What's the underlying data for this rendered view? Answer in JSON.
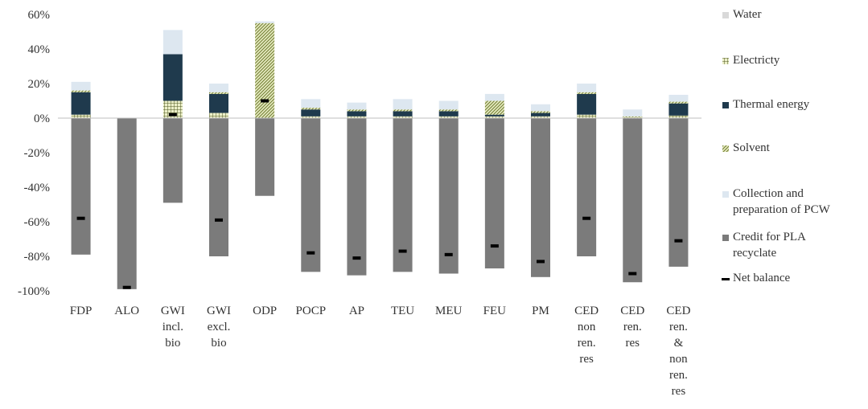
{
  "chart_data": {
    "type": "bar",
    "stacked": true,
    "title": "",
    "xlabel": "",
    "ylabel": "",
    "ylim": [
      -100,
      60
    ],
    "ytick_step": 20,
    "ytick_format": "percent",
    "grid": false,
    "legend_position": "right",
    "categories": [
      [
        "FDP"
      ],
      [
        "ALO"
      ],
      [
        "GWI",
        "incl.",
        "bio"
      ],
      [
        "GWI",
        "excl.",
        "bio"
      ],
      [
        "ODP"
      ],
      [
        "POCP"
      ],
      [
        "AP"
      ],
      [
        "TEU"
      ],
      [
        "MEU"
      ],
      [
        "FEU"
      ],
      [
        "PM"
      ],
      [
        "CED",
        "non",
        "ren.",
        "res"
      ],
      [
        "CED",
        "ren.",
        "res"
      ],
      [
        "CED",
        "ren.",
        "&",
        "non",
        "ren.",
        "res"
      ]
    ],
    "series": [
      {
        "name": "Water",
        "legend_lines": [
          "Water"
        ],
        "color": "#d9d9d9",
        "pattern": "solid",
        "values": [
          0,
          0,
          0,
          0,
          0,
          0,
          0,
          0,
          0,
          0,
          0,
          0,
          0,
          0
        ]
      },
      {
        "name": "Electricty",
        "legend_lines": [
          "Electricty"
        ],
        "color": "#6f7a3a",
        "pattern": "grid",
        "values": [
          2,
          0,
          10,
          3,
          0,
          1,
          1,
          1,
          1,
          1,
          1,
          2,
          0.5,
          1.5
        ]
      },
      {
        "name": "Thermal energy",
        "legend_lines": [
          "Thermal energy"
        ],
        "color": "#1f3a4d",
        "pattern": "solid",
        "values": [
          13,
          0,
          27,
          11,
          0,
          4,
          3,
          3,
          3,
          1,
          2,
          12,
          0,
          7
        ]
      },
      {
        "name": "Solvent",
        "legend_lines": [
          "Solvent"
        ],
        "color": "#8a9a3e",
        "pattern": "dots",
        "values": [
          1,
          0,
          0,
          1,
          55,
          1,
          1,
          1,
          1,
          8,
          1,
          1,
          0.5,
          1
        ]
      },
      {
        "name": "Collection and preparation of PCW",
        "legend_lines": [
          "Collection and",
          "preparation of PCW"
        ],
        "color": "#dde7f0",
        "pattern": "solid",
        "values": [
          5,
          0,
          14,
          5,
          1,
          5,
          4,
          6,
          5,
          4,
          4,
          5,
          4,
          4
        ]
      },
      {
        "name": "Credit for PLA recyclate",
        "legend_lines": [
          "Credit for PLA",
          "recyclate"
        ],
        "color": "#7b7b7b",
        "pattern": "solid",
        "values": [
          -79,
          -99,
          -49,
          -80,
          -45,
          -89,
          -91,
          -89,
          -90,
          -87,
          -92,
          -80,
          -95,
          -86
        ]
      }
    ],
    "net_balance": {
      "name": "Net balance",
      "legend_lines": [
        "Net balance"
      ],
      "color": "#000000",
      "values": [
        -58,
        -98,
        2,
        -59,
        10,
        -78,
        -81,
        -77,
        -79,
        -74,
        -83,
        -58,
        -90,
        -71
      ]
    }
  }
}
